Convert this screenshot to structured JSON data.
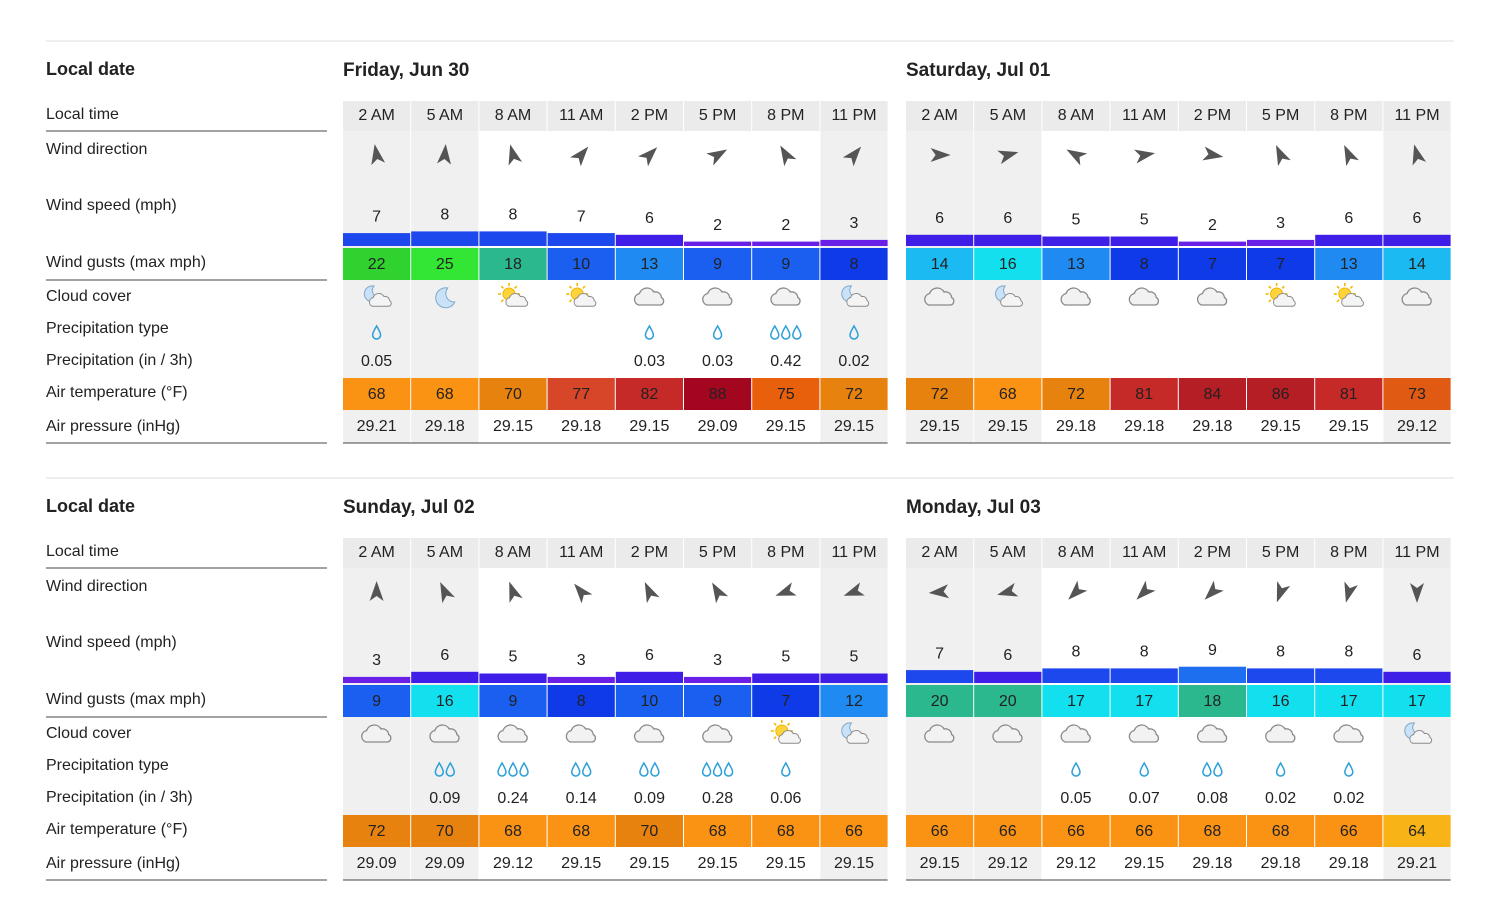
{
  "blocks": [
    {
      "row_labels": [
        "Local date",
        "Local time",
        "Wind direction",
        "Wind speed (mph)",
        "Wind gusts (max mph)",
        "Cloud cover",
        "Precipitation type",
        "Precipitation (in / 3h)",
        "Air temperature (°F)",
        "Air pressure (inHg)"
      ],
      "days": [
        {
          "date": "Friday, Jun 30",
          "times": [
            "2 AM",
            "5 AM",
            "8 AM",
            "11 AM",
            "2 PM",
            "5 PM",
            "8 PM",
            "11 PM"
          ],
          "wind_direction": [
            350,
            5,
            345,
            40,
            45,
            60,
            330,
            40
          ],
          "wind_speed": [
            7,
            8,
            8,
            7,
            6,
            2,
            2,
            3
          ],
          "wind_gusts": [
            22,
            25,
            18,
            10,
            13,
            9,
            9,
            8
          ],
          "cloud_cover": [
            40,
            10,
            40,
            60,
            90,
            90,
            90,
            50
          ],
          "precipitation": [
            0.05,
            null,
            null,
            null,
            0.03,
            0.03,
            0.42,
            0.02
          ],
          "air_temperature": [
            68,
            68,
            70,
            77,
            82,
            88,
            75,
            72
          ],
          "air_pressure": [
            29.21,
            29.18,
            29.15,
            29.18,
            29.15,
            29.09,
            29.15,
            29.15
          ]
        },
        {
          "date": "Saturday, Jul 01",
          "times": [
            "2 AM",
            "5 AM",
            "8 AM",
            "11 AM",
            "2 PM",
            "5 PM",
            "8 PM",
            "11 PM"
          ],
          "wind_direction": [
            90,
            75,
            300,
            80,
            100,
            335,
            335,
            345
          ],
          "wind_speed": [
            6,
            6,
            5,
            5,
            2,
            3,
            6,
            6
          ],
          "wind_gusts": [
            14,
            16,
            13,
            8,
            7,
            7,
            13,
            14
          ],
          "cloud_cover": [
            90,
            50,
            90,
            90,
            90,
            40,
            60,
            90
          ],
          "precipitation": [
            null,
            null,
            null,
            null,
            null,
            null,
            null,
            null
          ],
          "air_temperature": [
            72,
            68,
            72,
            81,
            84,
            86,
            81,
            73
          ],
          "air_pressure": [
            29.15,
            29.15,
            29.18,
            29.18,
            29.18,
            29.15,
            29.15,
            29.12
          ]
        }
      ]
    },
    {
      "row_labels": [
        "Local date",
        "Local time",
        "Wind direction",
        "Wind speed (mph)",
        "Wind gusts (max mph)",
        "Cloud cover",
        "Precipitation type",
        "Precipitation (in / 3h)",
        "Air temperature (°F)",
        "Air pressure (inHg)"
      ],
      "days": [
        {
          "date": "Sunday, Jul 02",
          "times": [
            "2 AM",
            "5 AM",
            "8 AM",
            "11 AM",
            "2 PM",
            "5 PM",
            "8 PM",
            "11 PM"
          ],
          "wind_direction": [
            0,
            335,
            340,
            320,
            335,
            330,
            250,
            250
          ],
          "wind_speed": [
            3,
            6,
            5,
            3,
            6,
            3,
            5,
            5
          ],
          "wind_gusts": [
            9,
            16,
            9,
            8,
            10,
            9,
            7,
            12
          ],
          "cloud_cover": [
            90,
            90,
            90,
            90,
            90,
            90,
            40,
            50
          ],
          "precipitation": [
            null,
            0.09,
            0.24,
            0.14,
            0.09,
            0.28,
            0.06,
            null
          ],
          "air_temperature": [
            72,
            70,
            68,
            68,
            70,
            68,
            68,
            66
          ],
          "air_pressure": [
            29.09,
            29.09,
            29.12,
            29.15,
            29.15,
            29.15,
            29.15,
            29.15
          ]
        },
        {
          "date": "Monday, Jul 03",
          "times": [
            "2 AM",
            "5 AM",
            "8 AM",
            "11 AM",
            "2 PM",
            "5 PM",
            "8 PM",
            "11 PM"
          ],
          "wind_direction": [
            265,
            255,
            225,
            225,
            225,
            200,
            195,
            180
          ],
          "wind_speed": [
            7,
            6,
            8,
            8,
            9,
            8,
            8,
            6
          ],
          "wind_gusts": [
            20,
            20,
            17,
            17,
            18,
            16,
            17,
            17
          ],
          "cloud_cover": [
            90,
            90,
            90,
            90,
            90,
            90,
            90,
            50
          ],
          "precipitation": [
            null,
            null,
            0.05,
            0.07,
            0.08,
            0.02,
            0.02,
            null
          ],
          "air_temperature": [
            66,
            66,
            66,
            66,
            68,
            68,
            66,
            64
          ],
          "air_pressure": [
            29.15,
            29.12,
            29.12,
            29.15,
            29.18,
            29.18,
            29.18,
            29.21
          ]
        }
      ]
    }
  ]
}
